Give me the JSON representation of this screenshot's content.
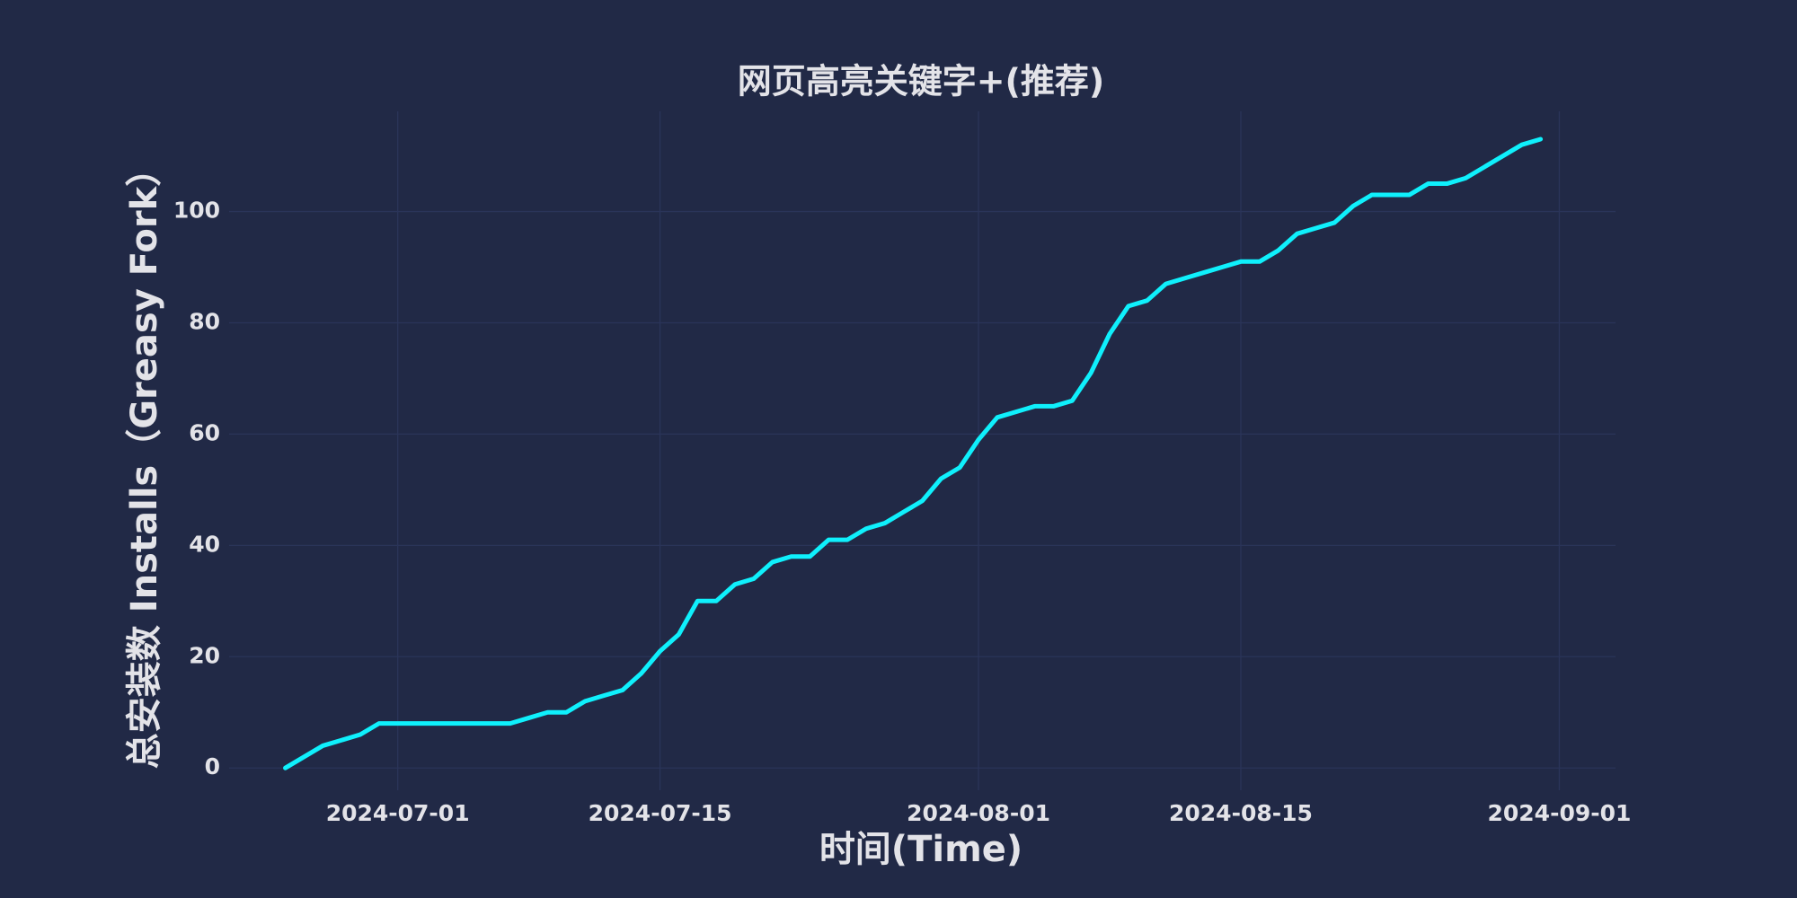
{
  "chart_data": {
    "type": "line",
    "title": "网页高亮关键字+(推荐)",
    "x_label": "时间(Time)",
    "y_label": "总安装数 Installs（Greasy Fork）",
    "x": [
      "2024-06-25",
      "2024-06-26",
      "2024-06-27",
      "2024-06-28",
      "2024-06-29",
      "2024-06-30",
      "2024-07-01",
      "2024-07-02",
      "2024-07-03",
      "2024-07-04",
      "2024-07-05",
      "2024-07-06",
      "2024-07-07",
      "2024-07-08",
      "2024-07-09",
      "2024-07-10",
      "2024-07-11",
      "2024-07-12",
      "2024-07-13",
      "2024-07-14",
      "2024-07-15",
      "2024-07-16",
      "2024-07-17",
      "2024-07-18",
      "2024-07-19",
      "2024-07-20",
      "2024-07-21",
      "2024-07-22",
      "2024-07-23",
      "2024-07-24",
      "2024-07-25",
      "2024-07-26",
      "2024-07-27",
      "2024-07-28",
      "2024-07-29",
      "2024-07-30",
      "2024-07-31",
      "2024-08-01",
      "2024-08-02",
      "2024-08-03",
      "2024-08-04",
      "2024-08-05",
      "2024-08-06",
      "2024-08-07",
      "2024-08-08",
      "2024-08-09",
      "2024-08-10",
      "2024-08-11",
      "2024-08-12",
      "2024-08-13",
      "2024-08-14",
      "2024-08-15",
      "2024-08-16",
      "2024-08-17",
      "2024-08-18",
      "2024-08-19",
      "2024-08-20",
      "2024-08-21",
      "2024-08-22",
      "2024-08-23",
      "2024-08-24",
      "2024-08-25",
      "2024-08-26",
      "2024-08-27",
      "2024-08-28",
      "2024-08-29",
      "2024-08-30",
      "2024-08-31"
    ],
    "series": [
      {
        "name": "Installs",
        "color": "#0ff0fc",
        "values": [
          0,
          2,
          4,
          5,
          6,
          8,
          8,
          8,
          8,
          8,
          8,
          8,
          8,
          9,
          10,
          10,
          12,
          13,
          14,
          17,
          21,
          24,
          30,
          30,
          33,
          34,
          37,
          38,
          38,
          41,
          41,
          43,
          44,
          46,
          48,
          52,
          54,
          59,
          63,
          64,
          65,
          65,
          66,
          71,
          78,
          83,
          84,
          87,
          88,
          89,
          90,
          91,
          91,
          93,
          96,
          97,
          98,
          101,
          103,
          103,
          103,
          105,
          105,
          106,
          108,
          110,
          112,
          113
        ]
      }
    ],
    "xlim": [
      "2024-06-22",
      "2024-09-04"
    ],
    "xticks": [
      "2024-07-01",
      "2024-07-15",
      "2024-08-01",
      "2024-08-15",
      "2024-09-01"
    ],
    "ylim": [
      -4,
      118
    ],
    "yticks": [
      0,
      20,
      40,
      60,
      80,
      100
    ],
    "grid": true,
    "background": "#212946",
    "grid_color": "#2a3459"
  }
}
